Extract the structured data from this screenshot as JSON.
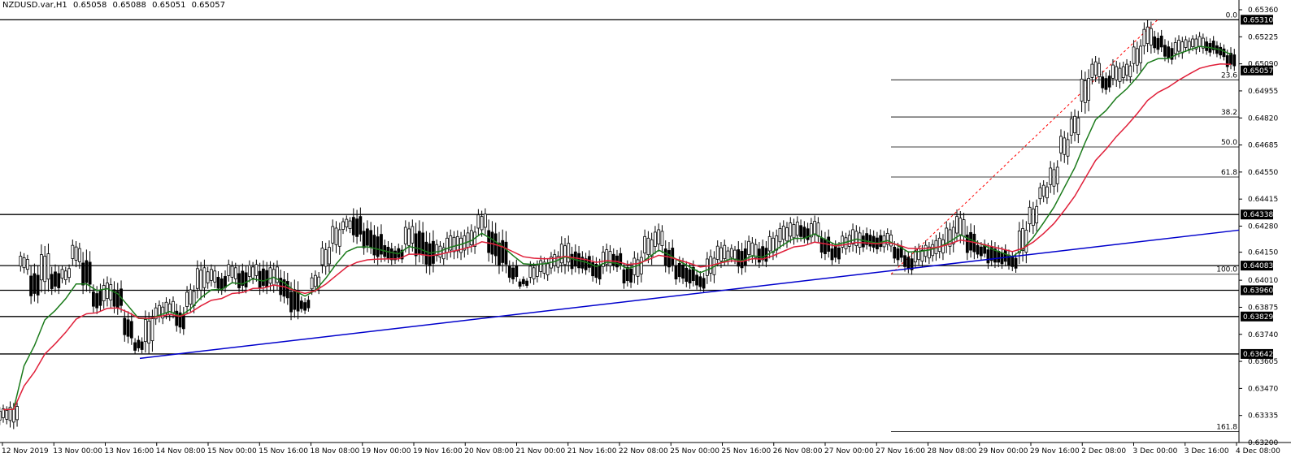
{
  "header": {
    "symbol": "NZDUSD.var,H1",
    "open": "0.65058",
    "high": "0.65088",
    "low": "0.65051",
    "close": "0.65057"
  },
  "chart_data": {
    "type": "candlestick",
    "symbol": "NZDUSD.var",
    "timeframe": "H1",
    "ylim": [
      0.632,
      0.6536
    ],
    "y_ticks": [
      "0.65360",
      "0.65225",
      "0.65090",
      "0.64955",
      "0.64820",
      "0.64685",
      "0.64550",
      "0.64415",
      "0.64280",
      "0.64150",
      "0.64010",
      "0.63875",
      "0.63740",
      "0.63605",
      "0.63470",
      "0.63335",
      "0.63200"
    ],
    "x_ticks": [
      "12 Nov 2019",
      "13 Nov 00:00",
      "13 Nov 16:00",
      "14 Nov 08:00",
      "15 Nov 00:00",
      "15 Nov 16:00",
      "18 Nov 08:00",
      "19 Nov 00:00",
      "19 Nov 16:00",
      "20 Nov 08:00",
      "21 Nov 00:00",
      "21 Nov 16:00",
      "22 Nov 08:00",
      "25 Nov 00:00",
      "25 Nov 16:00",
      "26 Nov 08:00",
      "27 Nov 00:00",
      "27 Nov 16:00",
      "28 Nov 08:00",
      "29 Nov 00:00",
      "29 Nov 16:00",
      "2 Dec 08:00",
      "3 Dec 00:00",
      "3 Dec 16:00",
      "4 Dec 08:00"
    ],
    "horizontal_levels": [
      {
        "price": 0.6531,
        "label": "0.65310"
      },
      {
        "price": 0.64338,
        "label": "0.64338"
      },
      {
        "price": 0.64083,
        "label": "0.64083"
      },
      {
        "price": 0.6396,
        "label": "0.63960"
      },
      {
        "price": 0.63829,
        "label": "0.63829"
      },
      {
        "price": 0.63642,
        "label": "0.63642"
      }
    ],
    "current_price": {
      "price": 0.65057,
      "label": "0.65057"
    },
    "fibonacci": {
      "high": 0.6531,
      "low": 0.6404,
      "levels": [
        {
          "label": "0.0",
          "ratio": 0.0
        },
        {
          "label": "23.6",
          "ratio": 0.236
        },
        {
          "label": "38.2",
          "ratio": 0.382
        },
        {
          "label": "50.0",
          "ratio": 0.5
        },
        {
          "label": "61.8",
          "ratio": 0.618
        },
        {
          "label": "100.0",
          "ratio": 1.0
        },
        {
          "label": "161.8",
          "ratio": 1.618
        }
      ]
    },
    "trendline": {
      "from": {
        "x": "14 Nov 00:00",
        "y": 0.6362
      },
      "to": {
        "x": "4 Dec 08:00",
        "y": 0.6426
      },
      "color": "#0000cc"
    },
    "colors": {
      "ma_fast": "#1a7a1a",
      "ma_slow": "#e0203a",
      "trendline": "#0000cc",
      "fib": "#ff0000",
      "candle": "#000000",
      "level": "#000000"
    },
    "price_path": [
      [
        0.6338,
        0.633
      ],
      [
        0.634,
        0.6328
      ],
      [
        0.6414,
        0.6405
      ],
      [
        0.6408,
        0.639
      ],
      [
        0.6418,
        0.6395
      ],
      [
        0.6408,
        0.6395
      ],
      [
        0.6408,
        0.64
      ],
      [
        0.642,
        0.6408
      ],
      [
        0.6415,
        0.6395
      ],
      [
        0.6398,
        0.6385
      ],
      [
        0.6402,
        0.6388
      ],
      [
        0.64,
        0.6385
      ],
      [
        0.6385,
        0.637
      ],
      [
        0.6372,
        0.6365
      ],
      [
        0.6385,
        0.6365
      ],
      [
        0.639,
        0.638
      ],
      [
        0.6392,
        0.6382
      ],
      [
        0.6388,
        0.6375
      ],
      [
        0.6398,
        0.6385
      ],
      [
        0.641,
        0.6392
      ],
      [
        0.6408,
        0.6398
      ],
      [
        0.6405,
        0.6395
      ],
      [
        0.641,
        0.64
      ],
      [
        0.6408,
        0.6395
      ],
      [
        0.641,
        0.64
      ],
      [
        0.641,
        0.6395
      ],
      [
        0.641,
        0.6396
      ],
      [
        0.6405,
        0.639
      ],
      [
        0.64,
        0.6382
      ],
      [
        0.6392,
        0.6385
      ],
      [
        0.6405,
        0.6395
      ],
      [
        0.642,
        0.6405
      ],
      [
        0.643,
        0.6415
      ],
      [
        0.6432,
        0.6425
      ],
      [
        0.6436,
        0.642
      ],
      [
        0.643,
        0.6415
      ],
      [
        0.6428,
        0.641
      ],
      [
        0.642,
        0.641
      ],
      [
        0.6418,
        0.641
      ],
      [
        0.643,
        0.6415
      ],
      [
        0.643,
        0.641
      ],
      [
        0.6425,
        0.6405
      ],
      [
        0.642,
        0.641
      ],
      [
        0.6425,
        0.6412
      ],
      [
        0.6425,
        0.6412
      ],
      [
        0.6428,
        0.6415
      ],
      [
        0.6436,
        0.6424
      ],
      [
        0.643,
        0.641
      ],
      [
        0.6425,
        0.6405
      ],
      [
        0.641,
        0.64
      ],
      [
        0.6402,
        0.6398
      ],
      [
        0.641,
        0.64
      ],
      [
        0.6412,
        0.6402
      ],
      [
        0.6415,
        0.6405
      ],
      [
        0.6422,
        0.6405
      ],
      [
        0.6418,
        0.6405
      ],
      [
        0.6415,
        0.6405
      ],
      [
        0.6412,
        0.64
      ],
      [
        0.6418,
        0.6405
      ],
      [
        0.6416,
        0.6406
      ],
      [
        0.641,
        0.6398
      ],
      [
        0.6415,
        0.64
      ],
      [
        0.6425,
        0.641
      ],
      [
        0.6428,
        0.6415
      ],
      [
        0.642,
        0.6405
      ],
      [
        0.6412,
        0.64
      ],
      [
        0.641,
        0.6398
      ],
      [
        0.6405,
        0.6396
      ],
      [
        0.6415,
        0.64
      ],
      [
        0.642,
        0.6408
      ],
      [
        0.6418,
        0.641
      ],
      [
        0.642,
        0.6405
      ],
      [
        0.6422,
        0.641
      ],
      [
        0.642,
        0.6408
      ],
      [
        0.6425,
        0.6412
      ],
      [
        0.643,
        0.6418
      ],
      [
        0.6432,
        0.642
      ],
      [
        0.643,
        0.642
      ],
      [
        0.6432,
        0.642
      ],
      [
        0.6425,
        0.6412
      ],
      [
        0.642,
        0.641
      ],
      [
        0.6425,
        0.6415
      ],
      [
        0.6428,
        0.6415
      ],
      [
        0.6426,
        0.6416
      ],
      [
        0.6425,
        0.6415
      ],
      [
        0.6426,
        0.6416
      ],
      [
        0.642,
        0.641
      ],
      [
        0.6415,
        0.6405
      ],
      [
        0.6418,
        0.6408
      ],
      [
        0.642,
        0.641
      ],
      [
        0.6424,
        0.6412
      ],
      [
        0.643,
        0.6415
      ],
      [
        0.6435,
        0.642
      ],
      [
        0.6428,
        0.6412
      ],
      [
        0.642,
        0.6412
      ],
      [
        0.642,
        0.6408
      ],
      [
        0.6418,
        0.6408
      ],
      [
        0.6415,
        0.6406
      ],
      [
        0.643,
        0.641
      ],
      [
        0.644,
        0.6425
      ],
      [
        0.645,
        0.644
      ],
      [
        0.646,
        0.6445
      ],
      [
        0.6475,
        0.646
      ],
      [
        0.6485,
        0.647
      ],
      [
        0.6505,
        0.6485
      ],
      [
        0.6512,
        0.65
      ],
      [
        0.6505,
        0.6495
      ],
      [
        0.651,
        0.6498
      ],
      [
        0.651,
        0.65
      ],
      [
        0.652,
        0.6505
      ],
      [
        0.653,
        0.6515
      ],
      [
        0.6525,
        0.6515
      ],
      [
        0.652,
        0.651
      ],
      [
        0.6522,
        0.6512
      ],
      [
        0.6522,
        0.6515
      ],
      [
        0.6524,
        0.6515
      ],
      [
        0.6522,
        0.6514
      ],
      [
        0.6519,
        0.6512
      ],
      [
        0.6516,
        0.6506
      ]
    ]
  }
}
